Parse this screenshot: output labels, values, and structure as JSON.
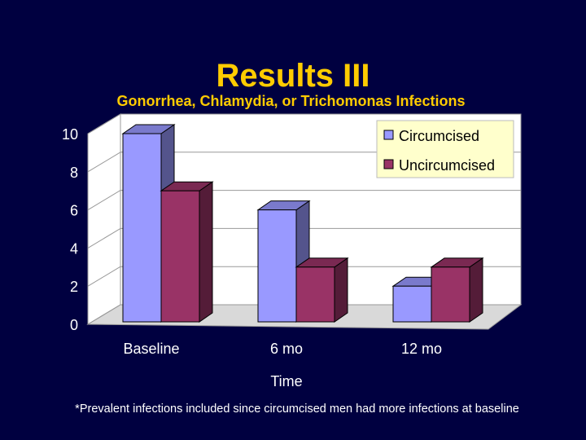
{
  "slide": {
    "title": "Results III",
    "subtitle": "Gonorrhea, Chlamydia, or Trichomonas Infections",
    "footnote": "*Prevalent infections included since circumcised men had more infections at baseline"
  },
  "colors": {
    "background": "#000040",
    "title": "#ffcc00",
    "circumcised": "#9999ff",
    "uncircumcised": "#993366",
    "plot_wall": "#ffffff",
    "legend_bg": "#ffffcc"
  },
  "chart_data": {
    "type": "bar",
    "style": "3d-clustered",
    "title": "Gonorrhea, Chlamydia, or Trichomonas Infections",
    "xlabel": "Time",
    "ylabel": "",
    "categories": [
      "Baseline",
      "6 mo",
      "12 mo"
    ],
    "series": [
      {
        "name": "Circumcised",
        "values": [
          10,
          6,
          2
        ]
      },
      {
        "name": "Uncircumcised",
        "values": [
          7,
          3,
          3
        ]
      }
    ],
    "ylim": [
      0,
      10
    ],
    "yticks": [
      "0",
      "2",
      "4",
      "6",
      "8",
      "10"
    ],
    "grid": true,
    "legend": "top-right"
  }
}
